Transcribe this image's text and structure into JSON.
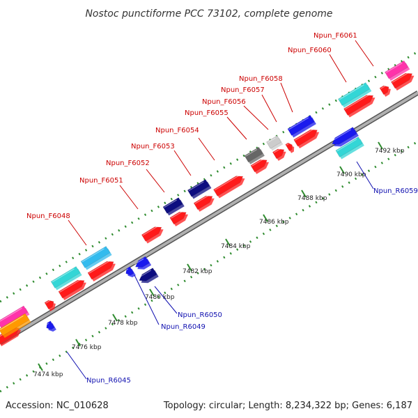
{
  "title": "Nostoc punctiforme PCC 73102, complete genome",
  "footer": {
    "accession": "Accession: NC_010628",
    "summary": "Topology: circular; Length: 8,234,322 bp; Genes: 6,187"
  },
  "ticks": [
    "7474 kbp",
    "7476 kbp",
    "7478 kbp",
    "7480 kbp",
    "7482 kbp",
    "7484 kbp",
    "7486 kbp",
    "7488 kbp",
    "7490 kbp",
    "7492 kbp"
  ],
  "forward_labels": [
    "Npun_F6048",
    "Npun_F6051",
    "Npun_F6052",
    "Npun_F6053",
    "Npun_F6054",
    "Npun_F6055",
    "Npun_F6056",
    "Npun_F6057",
    "Npun_F6058",
    "Npun_F6060",
    "Npun_F6061"
  ],
  "reverse_labels": [
    "Npun_R6045",
    "Npun_R6049",
    "Npun_R6050",
    "Npun_R6059"
  ],
  "colors": {
    "cds": "#ff1a1a",
    "cyan": "#33d6d6",
    "sky": "#33bbee",
    "navy": "#0d0d80",
    "blue": "#1a1aee",
    "gray": "#666666",
    "light_gray": "#cccccc",
    "pink": "#ff33aa",
    "orange": "#ff9900",
    "backbone": "#999999",
    "dot": "#2e8b2e"
  }
}
